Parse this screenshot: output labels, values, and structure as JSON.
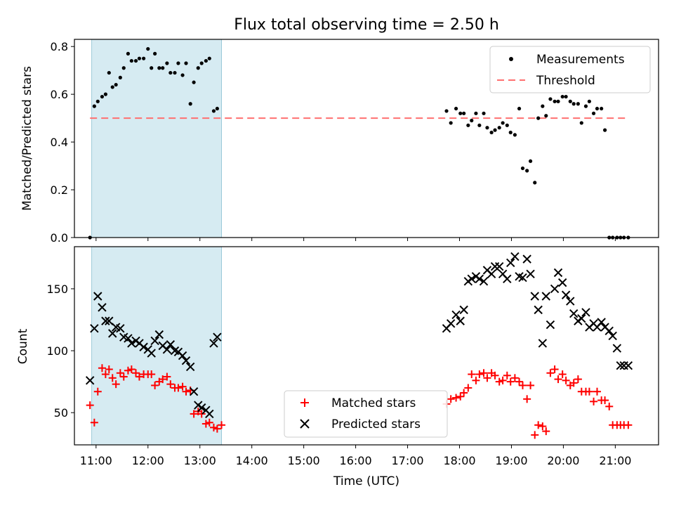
{
  "chart_data": [
    {
      "type": "scatter",
      "title": "Flux total observing time = 2.50 h",
      "xlabel": "",
      "ylabel": "Matched/Predicted stars",
      "xlim": [
        "10:35",
        "21:50"
      ],
      "ylim": [
        0,
        0.83
      ],
      "yticks": [
        "0.0",
        "0.2",
        "0.4",
        "0.6",
        "0.8"
      ],
      "highlight_span": [
        "10:55",
        "13:25"
      ],
      "threshold": 0.5,
      "legend": {
        "position": "upper right",
        "entries": [
          "Measurements",
          "Threshold"
        ]
      },
      "series": [
        {
          "name": "Measurements",
          "x": [
            "10:53",
            "10:58",
            "11:02",
            "11:07",
            "11:11",
            "11:15",
            "11:19",
            "11:23",
            "11:28",
            "11:32",
            "11:37",
            "11:41",
            "11:46",
            "11:50",
            "11:55",
            "12:00",
            "12:04",
            "12:08",
            "12:13",
            "12:17",
            "12:22",
            "12:26",
            "12:31",
            "12:35",
            "12:40",
            "12:44",
            "12:49",
            "12:53",
            "12:58",
            "13:02",
            "13:07",
            "13:11",
            "13:16",
            "13:20",
            "17:45",
            "17:50",
            "17:56",
            "18:01",
            "18:05",
            "18:10",
            "18:14",
            "18:19",
            "18:23",
            "18:28",
            "18:32",
            "18:37",
            "18:41",
            "18:46",
            "18:50",
            "18:55",
            "18:59",
            "19:04",
            "19:09",
            "19:13",
            "19:18",
            "19:22",
            "19:27",
            "19:31",
            "19:36",
            "19:40",
            "19:45",
            "19:50",
            "19:54",
            "19:59",
            "20:03",
            "20:08",
            "20:12",
            "20:17",
            "20:21",
            "20:26",
            "20:30",
            "20:35",
            "20:39",
            "20:44",
            "20:48",
            "20:53",
            "20:57",
            "21:02",
            "21:06",
            "21:10",
            "21:15"
          ],
          "y": [
            0.0,
            0.55,
            0.57,
            0.59,
            0.6,
            0.69,
            0.63,
            0.64,
            0.67,
            0.71,
            0.77,
            0.74,
            0.74,
            0.75,
            0.75,
            0.79,
            0.71,
            0.77,
            0.71,
            0.71,
            0.73,
            0.69,
            0.69,
            0.73,
            0.68,
            0.73,
            0.56,
            0.65,
            0.71,
            0.73,
            0.74,
            0.75,
            0.53,
            0.54,
            0.53,
            0.48,
            0.54,
            0.52,
            0.52,
            0.47,
            0.49,
            0.52,
            0.47,
            0.52,
            0.46,
            0.44,
            0.45,
            0.46,
            0.48,
            0.47,
            0.44,
            0.43,
            0.54,
            0.29,
            0.28,
            0.32,
            0.23,
            0.5,
            0.55,
            0.51,
            0.58,
            0.57,
            0.57,
            0.59,
            0.59,
            0.57,
            0.56,
            0.56,
            0.48,
            0.55,
            0.57,
            0.52,
            0.54,
            0.54,
            0.45,
            0.0,
            0.0,
            0.0,
            0.0,
            0.0,
            0.0
          ]
        }
      ]
    },
    {
      "type": "scatter",
      "title": "",
      "xlabel": "Time (UTC)",
      "ylabel": "Count",
      "xticks": [
        "11:00",
        "12:00",
        "13:00",
        "14:00",
        "15:00",
        "16:00",
        "17:00",
        "18:00",
        "19:00",
        "20:00",
        "21:00"
      ],
      "xlim": [
        "10:35",
        "21:50"
      ],
      "ylim": [
        24,
        184
      ],
      "yticks": [
        "50",
        "100",
        "150"
      ],
      "highlight_span": [
        "10:55",
        "13:25"
      ],
      "legend": {
        "position": "lower center",
        "entries": [
          "Matched stars",
          "Predicted stars"
        ]
      },
      "series": [
        {
          "name": "Matched stars",
          "marker": "+",
          "x": [
            "10:53",
            "10:58",
            "11:02",
            "11:07",
            "11:11",
            "11:15",
            "11:19",
            "11:23",
            "11:28",
            "11:32",
            "11:37",
            "11:41",
            "11:46",
            "11:50",
            "11:55",
            "12:00",
            "12:04",
            "12:08",
            "12:13",
            "12:17",
            "12:22",
            "12:26",
            "12:31",
            "12:35",
            "12:40",
            "12:44",
            "12:49",
            "12:53",
            "12:58",
            "13:02",
            "13:07",
            "13:11",
            "13:16",
            "13:20",
            "13:25",
            "17:45",
            "17:50",
            "17:56",
            "18:01",
            "18:05",
            "18:10",
            "18:14",
            "18:19",
            "18:23",
            "18:28",
            "18:32",
            "18:37",
            "18:41",
            "18:46",
            "18:50",
            "18:55",
            "18:59",
            "19:04",
            "19:09",
            "19:13",
            "19:18",
            "19:22",
            "19:27",
            "19:31",
            "19:36",
            "19:40",
            "19:45",
            "19:50",
            "19:54",
            "19:59",
            "20:03",
            "20:08",
            "20:12",
            "20:17",
            "20:21",
            "20:26",
            "20:30",
            "20:35",
            "20:39",
            "20:44",
            "20:48",
            "20:53",
            "20:57",
            "21:02",
            "21:06",
            "21:10",
            "21:15"
          ],
          "y": [
            56,
            42,
            67,
            86,
            81,
            85,
            78,
            73,
            82,
            79,
            84,
            85,
            82,
            79,
            81,
            81,
            81,
            72,
            75,
            77,
            79,
            73,
            70,
            70,
            71,
            67,
            68,
            49,
            51,
            49,
            41,
            42,
            38,
            37,
            40,
            57,
            61,
            62,
            63,
            66,
            70,
            81,
            76,
            81,
            82,
            78,
            82,
            80,
            75,
            76,
            80,
            75,
            78,
            75,
            72,
            61,
            72,
            32,
            40,
            39,
            35,
            82,
            85,
            77,
            81,
            76,
            72,
            74,
            77,
            67,
            67,
            67,
            59,
            67,
            60,
            60,
            55,
            40,
            40,
            40,
            40,
            40
          ],
          "color": "#ff0000"
        },
        {
          "name": "Predicted stars",
          "marker": "x",
          "x": [
            "10:53",
            "10:58",
            "11:02",
            "11:07",
            "11:11",
            "11:15",
            "11:19",
            "11:23",
            "11:28",
            "11:32",
            "11:37",
            "11:41",
            "11:46",
            "11:50",
            "11:55",
            "12:00",
            "12:04",
            "12:08",
            "12:13",
            "12:17",
            "12:22",
            "12:26",
            "12:31",
            "12:35",
            "12:40",
            "12:44",
            "12:49",
            "12:53",
            "12:58",
            "13:02",
            "13:07",
            "13:11",
            "13:16",
            "13:20",
            "17:45",
            "17:50",
            "17:56",
            "18:01",
            "18:05",
            "18:10",
            "18:14",
            "18:19",
            "18:23",
            "18:28",
            "18:32",
            "18:37",
            "18:41",
            "18:46",
            "18:50",
            "18:55",
            "18:59",
            "19:04",
            "19:09",
            "19:13",
            "19:18",
            "19:22",
            "19:27",
            "19:31",
            "19:36",
            "19:40",
            "19:45",
            "19:50",
            "19:54",
            "19:59",
            "20:03",
            "20:08",
            "20:12",
            "20:17",
            "20:21",
            "20:26",
            "20:30",
            "20:35",
            "20:39",
            "20:44",
            "20:48",
            "20:53",
            "20:57",
            "21:02",
            "21:06",
            "21:10",
            "21:15"
          ],
          "y": [
            76,
            118,
            144,
            135,
            124,
            124,
            114,
            119,
            118,
            111,
            110,
            106,
            108,
            106,
            103,
            101,
            98,
            108,
            113,
            104,
            101,
            105,
            100,
            99,
            96,
            92,
            87,
            67,
            56,
            54,
            52,
            49,
            106,
            111,
            118,
            122,
            129,
            124,
            133,
            156,
            158,
            160,
            158,
            156,
            165,
            162,
            168,
            168,
            162,
            158,
            171,
            176,
            160,
            159,
            174,
            162,
            144,
            133,
            106,
            144,
            121,
            150,
            163,
            155,
            145,
            140,
            130,
            124,
            126,
            131,
            119,
            122,
            119,
            123,
            119,
            116,
            112,
            102,
            88,
            88,
            88
          ],
          "color": "#000000"
        }
      ]
    }
  ]
}
